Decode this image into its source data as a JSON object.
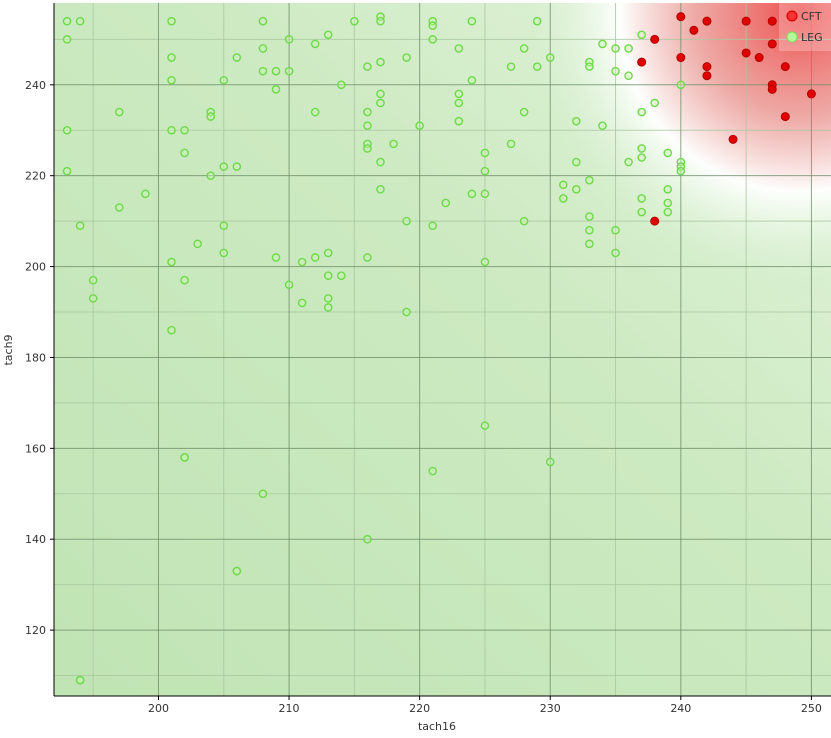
{
  "colors": {
    "leg_fill": "#c9ecbf",
    "cft_fill": "#f2a0a0",
    "grid_major": "#6f8f6a",
    "grid_minor": "#a9c7a0",
    "axis": "#000000",
    "leg_marker": "#7fe05a",
    "cft_marker": "#e00000"
  },
  "chart_data": {
    "type": "scatter",
    "xlabel": "tach16",
    "ylabel": "tach9",
    "xlim": [
      192,
      251.5
    ],
    "ylim": [
      105.5,
      258
    ],
    "xticks": [
      200,
      210,
      220,
      230,
      240,
      250
    ],
    "yticks": [
      120,
      140,
      160,
      180,
      200,
      220,
      240
    ],
    "legend_position": "top-right",
    "grid": true,
    "series": [
      {
        "name": "CFT",
        "color": "#e00000",
        "x": [
          240,
          242,
          245,
          247,
          241,
          240,
          238,
          237,
          242,
          242,
          245,
          246,
          247,
          247,
          247,
          248,
          248,
          250,
          244,
          238
        ],
        "y": [
          255,
          254,
          254,
          254,
          252,
          246,
          250,
          245,
          244,
          242,
          247,
          246,
          249,
          240,
          239,
          244,
          233,
          238,
          228,
          210
        ]
      },
      {
        "name": "LEG",
        "color": "#7fe05a",
        "x": [
          193,
          194,
          193,
          193,
          193,
          194,
          195,
          195,
          194,
          197,
          197,
          199,
          201,
          201,
          201,
          201,
          201,
          201,
          202,
          202,
          202,
          202,
          204,
          204,
          204,
          205,
          205,
          205,
          205,
          206,
          206,
          203,
          206,
          208,
          208,
          208,
          209,
          209,
          209,
          210,
          210,
          210,
          211,
          211,
          212,
          212,
          212,
          213,
          213,
          213,
          213,
          213,
          214,
          214,
          215,
          216,
          216,
          216,
          216,
          216,
          216,
          217,
          217,
          217,
          217,
          217,
          217,
          217,
          218,
          219,
          219,
          219,
          220,
          221,
          221,
          221,
          221,
          222,
          223,
          223,
          223,
          223,
          224,
          224,
          224,
          225,
          225,
          225,
          225,
          227,
          227,
          228,
          228,
          228,
          229,
          229,
          230,
          230,
          231,
          231,
          232,
          232,
          232,
          233,
          233,
          233,
          233,
          233,
          233,
          234,
          234,
          235,
          235,
          235,
          235,
          236,
          236,
          236,
          237,
          237,
          237,
          237,
          237,
          237,
          238,
          239,
          239,
          239,
          239,
          240,
          240,
          240,
          240,
          221,
          216,
          225,
          208,
          206,
          194,
          202
        ],
        "y": [
          254,
          254,
          250,
          230,
          221,
          209,
          197,
          193,
          109,
          234,
          213,
          216,
          254,
          246,
          241,
          230,
          201,
          186,
          230,
          225,
          197,
          158,
          234,
          233,
          220,
          241,
          222,
          209,
          203,
          246,
          222,
          205,
          133,
          254,
          248,
          243,
          243,
          239,
          202,
          243,
          250,
          196,
          201,
          192,
          249,
          234,
          202,
          251,
          203,
          198,
          193,
          191,
          240,
          198,
          254,
          244,
          234,
          231,
          227,
          226,
          202,
          255,
          254,
          245,
          238,
          236,
          223,
          217,
          227,
          246,
          210,
          190,
          231,
          254,
          253,
          250,
          209,
          214,
          248,
          238,
          236,
          232,
          254,
          241,
          216,
          225,
          221,
          216,
          201,
          244,
          227,
          248,
          234,
          210,
          254,
          244,
          246,
          157,
          218,
          215,
          232,
          223,
          217,
          245,
          244,
          219,
          211,
          208,
          205,
          249,
          231,
          248,
          243,
          208,
          203,
          248,
          242,
          223,
          251,
          234,
          226,
          224,
          215,
          212,
          236,
          225,
          217,
          214,
          212,
          240,
          223,
          222,
          221,
          155,
          140,
          165,
          150,
          133,
          109,
          158
        ]
      }
    ]
  }
}
